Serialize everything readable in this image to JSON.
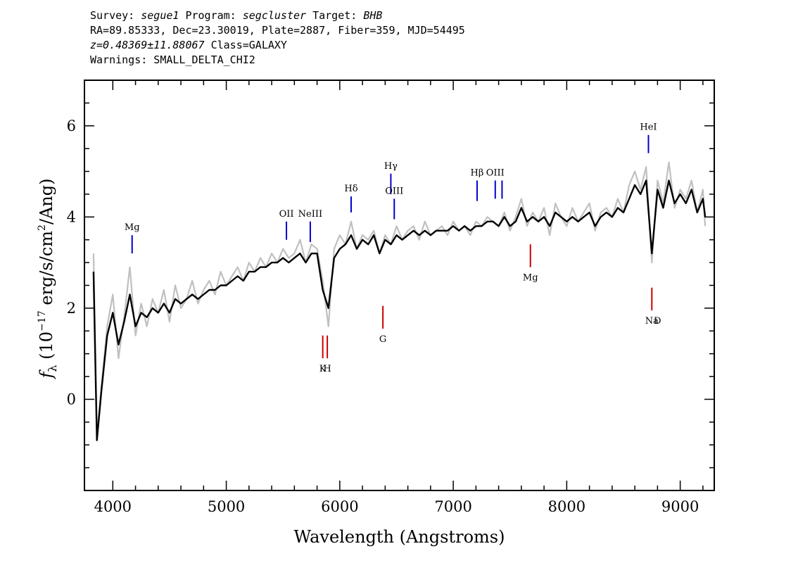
{
  "header": {
    "line1": {
      "survey_label": "Survey:",
      "survey": "segue1",
      "program_label": "Program:",
      "program": "segcluster",
      "target_label": "Target:",
      "target": "BHB"
    },
    "line2": "RA=89.85333, Dec=23.30019, Plate=2887, Fiber=359, MJD=54495",
    "line3": {
      "redshift": "z=0.48369±11.88067",
      "class": "Class=GALAXY"
    },
    "line4": "Warnings: SMALL_DELTA_CHI2"
  },
  "chart_data": {
    "type": "line",
    "xlabel": "Wavelength (Angstroms)",
    "ylabel_prefix": "f",
    "ylabel_sub": "λ",
    "ylabel_unit_a": "(10",
    "ylabel_exp": "−17",
    "ylabel_unit_b": "erg/s/cm",
    "ylabel_exp2": "2",
    "ylabel_unit_c": "/Ang)",
    "xlim": [
      3750,
      9300
    ],
    "ylim": [
      -2.0,
      7.0
    ],
    "xticks": [
      4000,
      5000,
      6000,
      7000,
      8000,
      9000
    ],
    "yticks": [
      0,
      2,
      4,
      6
    ],
    "series": [
      {
        "role": "noisy spectrum",
        "color": "#c0c0c0",
        "x": [
          3830,
          3860,
          3900,
          3950,
          4000,
          4050,
          4100,
          4150,
          4200,
          4250,
          4300,
          4350,
          4400,
          4450,
          4500,
          4550,
          4600,
          4650,
          4700,
          4750,
          4800,
          4850,
          4900,
          4950,
          5000,
          5050,
          5100,
          5150,
          5200,
          5250,
          5300,
          5350,
          5400,
          5450,
          5500,
          5550,
          5600,
          5650,
          5700,
          5750,
          5800,
          5850,
          5900,
          5950,
          6000,
          6050,
          6100,
          6150,
          6200,
          6250,
          6300,
          6350,
          6400,
          6450,
          6500,
          6550,
          6600,
          6650,
          6700,
          6750,
          6800,
          6850,
          6900,
          6950,
          7000,
          7050,
          7100,
          7150,
          7200,
          7250,
          7300,
          7350,
          7400,
          7450,
          7500,
          7550,
          7600,
          7650,
          7700,
          7750,
          7800,
          7850,
          7900,
          7950,
          8000,
          8050,
          8100,
          8150,
          8200,
          8250,
          8300,
          8350,
          8400,
          8450,
          8500,
          8550,
          8600,
          8650,
          8700,
          8750,
          8800,
          8850,
          8900,
          8950,
          9000,
          9050,
          9100,
          9150,
          9200,
          9220
        ],
        "y": [
          3.2,
          -0.8,
          0.3,
          1.6,
          2.3,
          0.9,
          1.8,
          2.9,
          1.4,
          2.1,
          1.6,
          2.2,
          1.9,
          2.4,
          1.7,
          2.5,
          2.0,
          2.2,
          2.6,
          2.1,
          2.4,
          2.6,
          2.3,
          2.8,
          2.5,
          2.7,
          2.9,
          2.6,
          3.0,
          2.8,
          3.1,
          2.9,
          3.2,
          3.0,
          3.3,
          3.1,
          3.2,
          3.5,
          3.0,
          3.4,
          3.3,
          2.6,
          1.6,
          3.3,
          3.6,
          3.4,
          3.9,
          3.3,
          3.6,
          3.5,
          3.7,
          3.2,
          3.6,
          3.4,
          3.8,
          3.5,
          3.7,
          3.8,
          3.5,
          3.9,
          3.6,
          3.7,
          3.8,
          3.6,
          3.9,
          3.7,
          3.8,
          3.6,
          3.9,
          3.8,
          4.0,
          3.9,
          3.8,
          4.1,
          3.7,
          4.0,
          4.4,
          3.8,
          4.1,
          3.9,
          4.2,
          3.6,
          4.3,
          4.0,
          3.8,
          4.2,
          3.9,
          4.1,
          4.3,
          3.7,
          4.1,
          4.2,
          4.0,
          4.4,
          4.1,
          4.7,
          5.0,
          4.6,
          5.1,
          3.0,
          4.8,
          4.3,
          5.2,
          4.2,
          4.6,
          4.4,
          4.8,
          4.1,
          4.6,
          3.8
        ]
      },
      {
        "role": "smoothed spectrum",
        "color": "#000000",
        "x": [
          3830,
          3860,
          3900,
          3950,
          4000,
          4050,
          4100,
          4150,
          4200,
          4250,
          4300,
          4350,
          4400,
          4450,
          4500,
          4550,
          4600,
          4650,
          4700,
          4750,
          4800,
          4850,
          4900,
          4950,
          5000,
          5050,
          5100,
          5150,
          5200,
          5250,
          5300,
          5350,
          5400,
          5450,
          5500,
          5550,
          5600,
          5650,
          5700,
          5750,
          5800,
          5850,
          5900,
          5950,
          6000,
          6050,
          6100,
          6150,
          6200,
          6250,
          6300,
          6350,
          6400,
          6450,
          6500,
          6550,
          6600,
          6650,
          6700,
          6750,
          6800,
          6850,
          6900,
          6950,
          7000,
          7050,
          7100,
          7150,
          7200,
          7250,
          7300,
          7350,
          7400,
          7450,
          7500,
          7550,
          7600,
          7650,
          7700,
          7750,
          7800,
          7850,
          7900,
          7950,
          8000,
          8050,
          8100,
          8150,
          8200,
          8250,
          8300,
          8350,
          8400,
          8450,
          8500,
          8550,
          8600,
          8650,
          8700,
          8750,
          8800,
          8850,
          8900,
          8950,
          9000,
          9050,
          9100,
          9150,
          9200,
          9220
        ],
        "y": [
          2.8,
          -0.9,
          0.2,
          1.4,
          1.9,
          1.2,
          1.7,
          2.3,
          1.6,
          1.9,
          1.8,
          2.0,
          1.9,
          2.1,
          1.9,
          2.2,
          2.1,
          2.2,
          2.3,
          2.2,
          2.3,
          2.4,
          2.4,
          2.5,
          2.5,
          2.6,
          2.7,
          2.6,
          2.8,
          2.8,
          2.9,
          2.9,
          3.0,
          3.0,
          3.1,
          3.0,
          3.1,
          3.2,
          3.0,
          3.2,
          3.2,
          2.4,
          2.0,
          3.1,
          3.3,
          3.4,
          3.6,
          3.3,
          3.5,
          3.4,
          3.6,
          3.2,
          3.5,
          3.4,
          3.6,
          3.5,
          3.6,
          3.7,
          3.6,
          3.7,
          3.6,
          3.7,
          3.7,
          3.7,
          3.8,
          3.7,
          3.8,
          3.7,
          3.8,
          3.8,
          3.9,
          3.9,
          3.8,
          4.0,
          3.8,
          3.9,
          4.2,
          3.9,
          4.0,
          3.9,
          4.0,
          3.8,
          4.1,
          4.0,
          3.9,
          4.0,
          3.9,
          4.0,
          4.1,
          3.8,
          4.0,
          4.1,
          4.0,
          4.2,
          4.1,
          4.4,
          4.7,
          4.5,
          4.8,
          3.2,
          4.6,
          4.2,
          4.8,
          4.3,
          4.5,
          4.3,
          4.6,
          4.1,
          4.4,
          4.0
        ]
      }
    ],
    "emission_lines": [
      {
        "name": "Mg",
        "x": 4170,
        "y_bottom": 3.2,
        "y_top": 3.6,
        "color": "#0000cc"
      },
      {
        "name": "OII",
        "x": 5530,
        "y_bottom": 3.5,
        "y_top": 3.9,
        "color": "#0000cc"
      },
      {
        "name": "NeIII",
        "x": 5740,
        "y_bottom": 3.45,
        "y_top": 3.9,
        "color": "#0000cc"
      },
      {
        "name": "Hδ",
        "x": 6100,
        "y_bottom": 4.1,
        "y_top": 4.45,
        "color": "#0000cc"
      },
      {
        "name": "Hγ",
        "x": 6450,
        "y_bottom": 4.5,
        "y_top": 4.95,
        "color": "#0000cc"
      },
      {
        "name": "OIII",
        "x": 6480,
        "y_bottom": 3.95,
        "y_top": 4.4,
        "color": "#0000cc"
      },
      {
        "name": "Hβ",
        "x": 7210,
        "y_bottom": 4.35,
        "y_top": 4.8,
        "color": "#0000cc"
      },
      {
        "name": "OIII",
        "x": 7370,
        "y_bottom": 4.4,
        "y_top": 4.8,
        "color": "#0000cc"
      },
      {
        "name": "OIII_b",
        "x": 7430,
        "y_bottom": 4.4,
        "y_top": 4.8,
        "color": "#0000cc",
        "label_hidden": true
      },
      {
        "name": "HeI",
        "x": 8720,
        "y_bottom": 5.4,
        "y_top": 5.8,
        "color": "#0000cc"
      }
    ],
    "absorption_lines": [
      {
        "name": "K",
        "x": 5850,
        "y_top": 1.4,
        "y_bottom": 0.9,
        "color": "#cc0000"
      },
      {
        "name": "H",
        "x": 5890,
        "y_top": 1.4,
        "y_bottom": 0.9,
        "color": "#cc0000"
      },
      {
        "name": "G",
        "x": 6380,
        "y_top": 2.05,
        "y_bottom": 1.55,
        "color": "#cc0000"
      },
      {
        "name": "Mg",
        "x": 7680,
        "y_top": 3.4,
        "y_bottom": 2.9,
        "color": "#cc0000"
      },
      {
        "name": "Na",
        "x": 8750,
        "y_top": 2.45,
        "y_bottom": 1.95,
        "color": "#cc0000"
      }
    ],
    "absorption_extra_label": {
      "name": "D",
      "x": 8800
    }
  }
}
